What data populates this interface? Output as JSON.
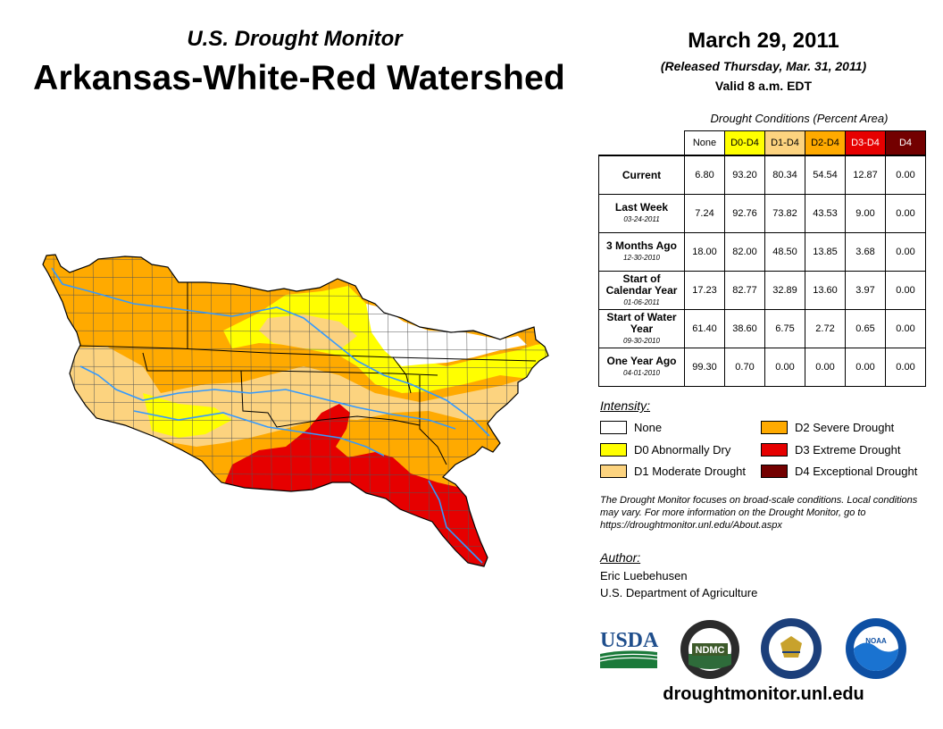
{
  "header": {
    "subtitle": "U.S. Drought Monitor",
    "title": "Arkansas-White-Red Watershed",
    "date": "March 29, 2011",
    "released": "(Released Thursday, Mar. 31, 2011)",
    "valid": "Valid 8 a.m. EDT"
  },
  "table": {
    "caption": "Drought Conditions (Percent Area)",
    "columns": [
      "None",
      "D0-D4",
      "D1-D4",
      "D2-D4",
      "D3-D4",
      "D4"
    ],
    "column_colors": [
      "#ffffff",
      "#ffff00",
      "#fcd37f",
      "#ffaa00",
      "#e60000",
      "#730000"
    ],
    "rows": [
      {
        "label": "Current",
        "date": "",
        "values": [
          "6.80",
          "93.20",
          "80.34",
          "54.54",
          "12.87",
          "0.00"
        ]
      },
      {
        "label": "Last Week",
        "date": "03-24-2011",
        "values": [
          "7.24",
          "92.76",
          "73.82",
          "43.53",
          "9.00",
          "0.00"
        ]
      },
      {
        "label": "3 Months Ago",
        "date": "12-30-2010",
        "values": [
          "18.00",
          "82.00",
          "48.50",
          "13.85",
          "3.68",
          "0.00"
        ]
      },
      {
        "label": "Start of Calendar Year",
        "date": "01-06-2011",
        "values": [
          "17.23",
          "82.77",
          "32.89",
          "13.60",
          "3.97",
          "0.00"
        ]
      },
      {
        "label": "Start of Water Year",
        "date": "09-30-2010",
        "values": [
          "61.40",
          "38.60",
          "6.75",
          "2.72",
          "0.65",
          "0.00"
        ]
      },
      {
        "label": "One Year Ago",
        "date": "04-01-2010",
        "values": [
          "99.30",
          "0.70",
          "0.00",
          "0.00",
          "0.00",
          "0.00"
        ]
      }
    ]
  },
  "legend": {
    "title": "Intensity:",
    "items": [
      {
        "label": "None",
        "color": "#ffffff"
      },
      {
        "label": "D0 Abnormally Dry",
        "color": "#ffff00"
      },
      {
        "label": "D1 Moderate Drought",
        "color": "#fcd37f"
      },
      {
        "label": "D2 Severe Drought",
        "color": "#ffaa00"
      },
      {
        "label": "D3 Extreme Drought",
        "color": "#e60000"
      },
      {
        "label": "D4 Exceptional Drought",
        "color": "#730000"
      }
    ]
  },
  "note": "The Drought Monitor focuses on broad-scale conditions. Local conditions may vary. For more information on the Drought Monitor, go to https://droughtmonitor.unl.edu/About.aspx",
  "author": {
    "heading": "Author:",
    "name": "Eric Luebehusen",
    "org": "U.S. Department of Agriculture"
  },
  "logos": {
    "usda": "USDA",
    "ndmc": "NDMC",
    "noaa": "NOAA"
  },
  "website": "droughtmonitor.unl.edu",
  "map": {
    "colors": {
      "none": "#ffffff",
      "d0": "#ffff00",
      "d1": "#fcd37f",
      "d2": "#ffaa00",
      "d3": "#e60000",
      "river": "#3399ff",
      "lines": "#555555"
    }
  }
}
